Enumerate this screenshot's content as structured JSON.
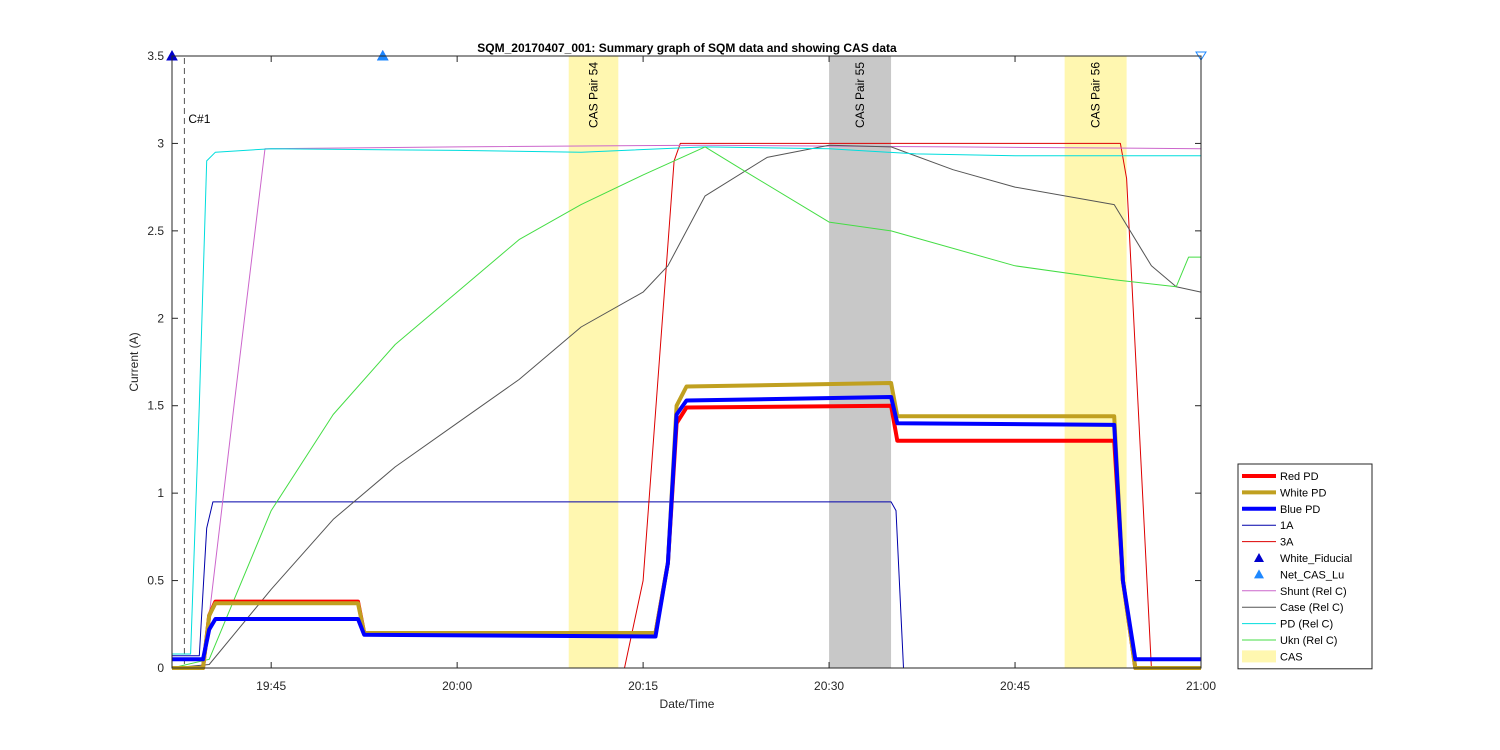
{
  "chart_data": {
    "type": "line",
    "title": "SQM_20170407_001: Summary graph of SQM data and showing CAS data",
    "xlabel": "Date/Time",
    "ylabel": "Current (A)",
    "x_range_minutes": [
      19.6167,
      21.0
    ],
    "xlim": [
      "19:37",
      "21:00"
    ],
    "ylim": [
      0,
      3.5
    ],
    "grid": false,
    "legend_position": "bottom-right-outside",
    "x_ticks": [
      {
        "t": "19:45",
        "label": "19:45"
      },
      {
        "t": "20:00",
        "label": "20:00"
      },
      {
        "t": "20:15",
        "label": "20:15"
      },
      {
        "t": "20:30",
        "label": "20:30"
      },
      {
        "t": "20:45",
        "label": "20:45"
      },
      {
        "t": "21:00",
        "label": "21:00"
      }
    ],
    "y_ticks": [
      {
        "v": 0,
        "label": "0"
      },
      {
        "v": 0.5,
        "label": "0.5"
      },
      {
        "v": 1,
        "label": "1"
      },
      {
        "v": 1.5,
        "label": "1.5"
      },
      {
        "v": 2,
        "label": "2"
      },
      {
        "v": 2.5,
        "label": "2.5"
      },
      {
        "v": 3,
        "label": "3"
      },
      {
        "v": 3.5,
        "label": "3.5"
      }
    ],
    "cas_bands": [
      {
        "label": "CAS Pair 54",
        "start": "20:09",
        "end": "20:13",
        "color": "#fff7b0"
      },
      {
        "label": "CAS Pair 55",
        "start": "20:30",
        "end": "20:35",
        "color": "#c8c8c8"
      },
      {
        "label": "CAS Pair 56",
        "start": "20:49",
        "end": "20:54",
        "color": "#fff7b0"
      }
    ],
    "markers": [
      {
        "label": "C#1",
        "time": "19:38"
      }
    ],
    "fiducials": [
      {
        "series": "White_Fiducial",
        "time": "19:37",
        "value": 3.5,
        "shape": "triangle-up",
        "color": "#0000cc"
      },
      {
        "series": "White_Fiducial",
        "time": "19:54",
        "value": 3.5,
        "shape": "triangle-up",
        "color": "#0000cc"
      },
      {
        "series": "Net_CAS_Lu",
        "time": "19:54",
        "value": 3.5,
        "shape": "triangle-up",
        "color": "#1e88ff"
      },
      {
        "series": "Net_CAS_Lu",
        "time": "21:00",
        "value": 3.5,
        "shape": "triangle-down-open",
        "color": "#1e88ff"
      }
    ],
    "series": [
      {
        "name": "Red PD",
        "color": "#ff0000",
        "width": 4,
        "points": [
          [
            "19:37",
            0
          ],
          [
            "19:39.5",
            0
          ],
          [
            "19:40",
            0.3
          ],
          [
            "19:40.5",
            0.38
          ],
          [
            "19:52",
            0.38
          ],
          [
            "19:52.5",
            0.2
          ],
          [
            "20:16",
            0.2
          ],
          [
            "20:17",
            0.6
          ],
          [
            "20:17.7",
            1.4
          ],
          [
            "20:18.5",
            1.49
          ],
          [
            "20:35",
            1.5
          ],
          [
            "20:35.5",
            1.3
          ],
          [
            "20:53",
            1.3
          ],
          [
            "20:53.7",
            0.5
          ],
          [
            "20:54.7",
            0
          ],
          [
            "21:00",
            0
          ]
        ]
      },
      {
        "name": "White PD",
        "color": "#c0a020",
        "width": 4,
        "points": [
          [
            "19:37",
            0
          ],
          [
            "19:39.5",
            0
          ],
          [
            "19:40",
            0.3
          ],
          [
            "19:40.5",
            0.37
          ],
          [
            "19:52",
            0.37
          ],
          [
            "19:52.5",
            0.2
          ],
          [
            "20:16",
            0.2
          ],
          [
            "20:17",
            0.6
          ],
          [
            "20:17.7",
            1.5
          ],
          [
            "20:18.5",
            1.61
          ],
          [
            "20:35",
            1.63
          ],
          [
            "20:35.5",
            1.44
          ],
          [
            "20:53",
            1.44
          ],
          [
            "20:53.7",
            0.5
          ],
          [
            "20:54.7",
            0
          ],
          [
            "21:00",
            0
          ]
        ]
      },
      {
        "name": "Blue PD",
        "color": "#0000ff",
        "width": 4,
        "points": [
          [
            "19:37",
            0.05
          ],
          [
            "19:39.5",
            0.05
          ],
          [
            "19:40",
            0.22
          ],
          [
            "19:40.5",
            0.28
          ],
          [
            "19:52",
            0.28
          ],
          [
            "19:52.5",
            0.19
          ],
          [
            "20:16",
            0.18
          ],
          [
            "20:17",
            0.6
          ],
          [
            "20:17.7",
            1.45
          ],
          [
            "20:18.5",
            1.53
          ],
          [
            "20:35",
            1.55
          ],
          [
            "20:35.5",
            1.4
          ],
          [
            "20:53",
            1.39
          ],
          [
            "20:53.7",
            0.5
          ],
          [
            "20:54.7",
            0.05
          ],
          [
            "21:00",
            0.05
          ]
        ]
      },
      {
        "name": "1A",
        "color": "#0000aa",
        "width": 1,
        "points": [
          [
            "19:37",
            0.07
          ],
          [
            "19:39.2",
            0.07
          ],
          [
            "19:39.8",
            0.8
          ],
          [
            "19:40.3",
            0.95
          ],
          [
            "20:35",
            0.95
          ],
          [
            "20:35.4",
            0.9
          ],
          [
            "20:36",
            0
          ],
          [
            "21:00",
            0
          ]
        ]
      },
      {
        "name": "3A",
        "color": "#dd0000",
        "width": 1,
        "points": [
          [
            "19:37",
            0
          ],
          [
            "20:13.5",
            0
          ],
          [
            "20:15",
            0.5
          ],
          [
            "20:17.5",
            2.9
          ],
          [
            "20:18",
            3.0
          ],
          [
            "20:53.5",
            3.0
          ],
          [
            "20:54",
            2.8
          ],
          [
            "20:56",
            0
          ],
          [
            "21:00",
            0
          ]
        ]
      },
      {
        "name": "Shunt (Rel C)",
        "color": "#cc66cc",
        "width": 1,
        "points": [
          [
            "19:37",
            0
          ],
          [
            "19:39.5",
            0
          ],
          [
            "19:42",
            1.5
          ],
          [
            "19:44.5",
            2.97
          ],
          [
            "20:00",
            2.98
          ],
          [
            "20:20",
            2.99
          ],
          [
            "20:40",
            2.98
          ],
          [
            "21:00",
            2.97
          ]
        ]
      },
      {
        "name": "Case (Rel C)",
        "color": "#555555",
        "width": 1,
        "points": [
          [
            "19:37",
            0
          ],
          [
            "19:40",
            0.02
          ],
          [
            "19:45",
            0.45
          ],
          [
            "19:50",
            0.85
          ],
          [
            "19:55",
            1.15
          ],
          [
            "20:00",
            1.4
          ],
          [
            "20:05",
            1.65
          ],
          [
            "20:10",
            1.95
          ],
          [
            "20:15",
            2.15
          ],
          [
            "20:17",
            2.3
          ],
          [
            "20:20",
            2.7
          ],
          [
            "20:25",
            2.92
          ],
          [
            "20:30",
            2.99
          ],
          [
            "20:35",
            2.98
          ],
          [
            "20:40",
            2.85
          ],
          [
            "20:45",
            2.75
          ],
          [
            "20:53",
            2.65
          ],
          [
            "20:56",
            2.3
          ],
          [
            "20:58",
            2.18
          ],
          [
            "21:00",
            2.15
          ]
        ]
      },
      {
        "name": "PD (Rel C)",
        "color": "#00dddd",
        "width": 1,
        "points": [
          [
            "19:37",
            0.08
          ],
          [
            "19:38.5",
            0.08
          ],
          [
            "19:39.2",
            1.5
          ],
          [
            "19:39.8",
            2.9
          ],
          [
            "19:40.5",
            2.95
          ],
          [
            "19:45",
            2.97
          ],
          [
            "20:00",
            2.96
          ],
          [
            "20:10",
            2.95
          ],
          [
            "20:20",
            2.98
          ],
          [
            "20:30",
            2.97
          ],
          [
            "20:37",
            2.94
          ],
          [
            "20:45",
            2.93
          ],
          [
            "21:00",
            2.93
          ]
        ]
      },
      {
        "name": "Ukn (Rel C)",
        "color": "#44dd44",
        "width": 1,
        "points": [
          [
            "19:37",
            0
          ],
          [
            "19:40",
            0.05
          ],
          [
            "19:45",
            0.9
          ],
          [
            "19:50",
            1.45
          ],
          [
            "19:55",
            1.85
          ],
          [
            "20:00",
            2.15
          ],
          [
            "20:05",
            2.45
          ],
          [
            "20:10",
            2.65
          ],
          [
            "20:15",
            2.82
          ],
          [
            "20:20",
            2.98
          ],
          [
            "20:23",
            2.85
          ],
          [
            "20:30",
            2.55
          ],
          [
            "20:35",
            2.5
          ],
          [
            "20:45",
            2.3
          ],
          [
            "20:53",
            2.22
          ],
          [
            "20:58",
            2.18
          ],
          [
            "20:59",
            2.35
          ],
          [
            "21:00",
            2.35
          ]
        ]
      }
    ],
    "legend": [
      {
        "label": "Red PD",
        "kind": "line",
        "color": "#ff0000",
        "width": 4
      },
      {
        "label": "White PD",
        "kind": "line",
        "color": "#c0a020",
        "width": 4
      },
      {
        "label": "Blue PD",
        "kind": "line",
        "color": "#0000ff",
        "width": 4
      },
      {
        "label": "1A",
        "kind": "line",
        "color": "#0000aa",
        "width": 1
      },
      {
        "label": "3A",
        "kind": "line",
        "color": "#dd0000",
        "width": 1
      },
      {
        "label": "White_Fiducial",
        "kind": "marker",
        "color": "#0000cc"
      },
      {
        "label": "Net_CAS_Lu",
        "kind": "marker",
        "color": "#1e88ff"
      },
      {
        "label": "Shunt (Rel C)",
        "kind": "line",
        "color": "#cc66cc",
        "width": 1
      },
      {
        "label": "Case (Rel C)",
        "kind": "line",
        "color": "#555555",
        "width": 1
      },
      {
        "label": "PD (Rel C)",
        "kind": "line",
        "color": "#00dddd",
        "width": 1
      },
      {
        "label": "Ukn (Rel C)",
        "kind": "line",
        "color": "#44dd44",
        "width": 1
      },
      {
        "label": "CAS",
        "kind": "patch",
        "color": "#fff7b0"
      }
    ]
  }
}
